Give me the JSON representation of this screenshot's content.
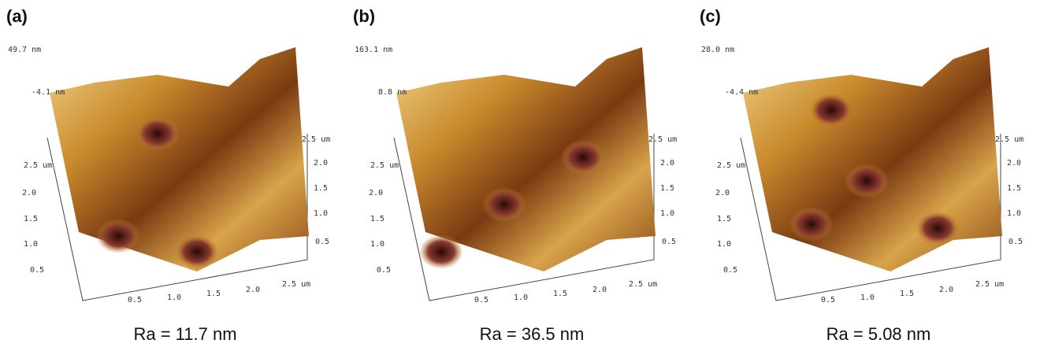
{
  "panels": [
    {
      "label": "(a)",
      "z_max": "49.7 nm",
      "z_offset": "-4.1 nm",
      "left_axis": [
        "2.5 um",
        "2.0",
        "1.5",
        "1.0",
        "0.5"
      ],
      "bottom_axis": [
        "0.5",
        "1.0",
        "1.5",
        "2.0",
        "2.5 um"
      ],
      "right_axis": [
        "2.5 um",
        "2.0",
        "1.5",
        "1.0",
        "0.5"
      ],
      "caption": "Ra = 11.7 nm"
    },
    {
      "label": "(b)",
      "z_max": "163.1 nm",
      "z_offset": "8.8 nm",
      "left_axis": [
        "2.5 um",
        "2.0",
        "1.5",
        "1.0",
        "0.5"
      ],
      "bottom_axis": [
        "0.5",
        "1.0",
        "1.5",
        "2.0",
        "2.5 um"
      ],
      "right_axis": [
        "2.5 um",
        "2.0",
        "1.5",
        "1.0",
        "0.5"
      ],
      "caption": "Ra = 36.5 nm"
    },
    {
      "label": "(c)",
      "z_max": "28.0 nm",
      "z_offset": "-4.4 nm",
      "left_axis": [
        "2.5 um",
        "2.0",
        "1.5",
        "1.0",
        "0.5"
      ],
      "bottom_axis": [
        "0.5",
        "1.0",
        "1.5",
        "2.0",
        "2.5 um"
      ],
      "right_axis": [
        "2.5 um",
        "2.0",
        "1.5",
        "1.0",
        "0.5"
      ],
      "caption": "Ra = 5.08 nm"
    }
  ]
}
